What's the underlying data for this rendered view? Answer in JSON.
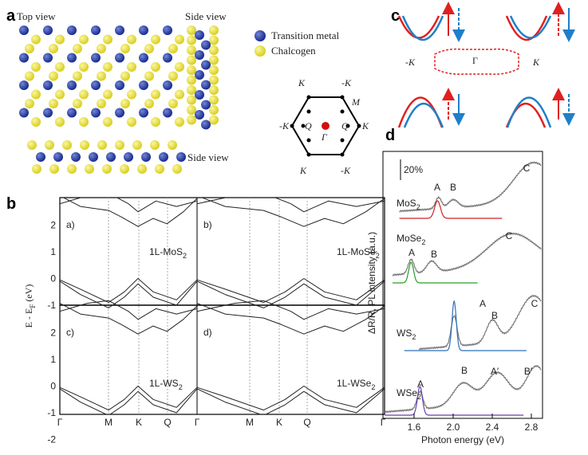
{
  "panel_a": {
    "label": "a",
    "top_view": "Top view",
    "side_view_right": "Side view",
    "side_view_bottom": "Side view",
    "legend": [
      "Transition metal",
      "Chalcogen"
    ],
    "bz_labels": [
      "K",
      "-K",
      "M",
      "-K",
      "-Q",
      "Q",
      "K",
      "Γ",
      "K",
      "-K"
    ]
  },
  "panel_b": {
    "label": "b",
    "y_label": {
      "main": "E - E",
      "sub": "F",
      "unit": " (eV)"
    },
    "y_ticks_top": [
      "2",
      "1",
      "0",
      "-1"
    ],
    "y_ticks_bottom": [
      "2",
      "1",
      "0",
      "-1",
      "-2"
    ],
    "x_ticks": [
      "Γ",
      "M",
      "K",
      "Q",
      "Γ",
      "M",
      "K",
      "Q",
      "Γ"
    ],
    "subpanels": [
      {
        "tag": "a)",
        "material": {
          "main": "1L-MoS",
          "sub": "2"
        }
      },
      {
        "tag": "b)",
        "material": {
          "main": "1L-MoSe",
          "sub": "2"
        }
      },
      {
        "tag": "c)",
        "material": {
          "main": "1L-WS",
          "sub": "2"
        }
      },
      {
        "tag": "d)",
        "material": {
          "main": "1L-WSe",
          "sub": "2"
        }
      }
    ]
  },
  "panel_c": {
    "label": "c",
    "valley_left": "-K",
    "center": "Γ",
    "valley_right": "K"
  },
  "panel_d": {
    "label": "d",
    "scale": "20%",
    "x_label": "Photon energy (eV)",
    "y_label": "ΔR/R, PL intensity (a.u.)",
    "x_ticks": [
      "1.6",
      "2.0",
      "2.4",
      "2.8"
    ],
    "materials": [
      {
        "name": {
          "main": "MoS",
          "sub": "2"
        },
        "peaks": [
          "A",
          "B",
          "C"
        ]
      },
      {
        "name": {
          "main": "MoSe",
          "sub": "2"
        },
        "peaks": [
          "A",
          "B",
          "C"
        ]
      },
      {
        "name": {
          "main": "WS",
          "sub": "2"
        },
        "peaks": [
          "A",
          "B",
          "C"
        ]
      },
      {
        "name": {
          "main": "WSe",
          "sub": "2"
        },
        "peaks": [
          "A",
          "B",
          "A′",
          "B′"
        ]
      }
    ]
  }
}
